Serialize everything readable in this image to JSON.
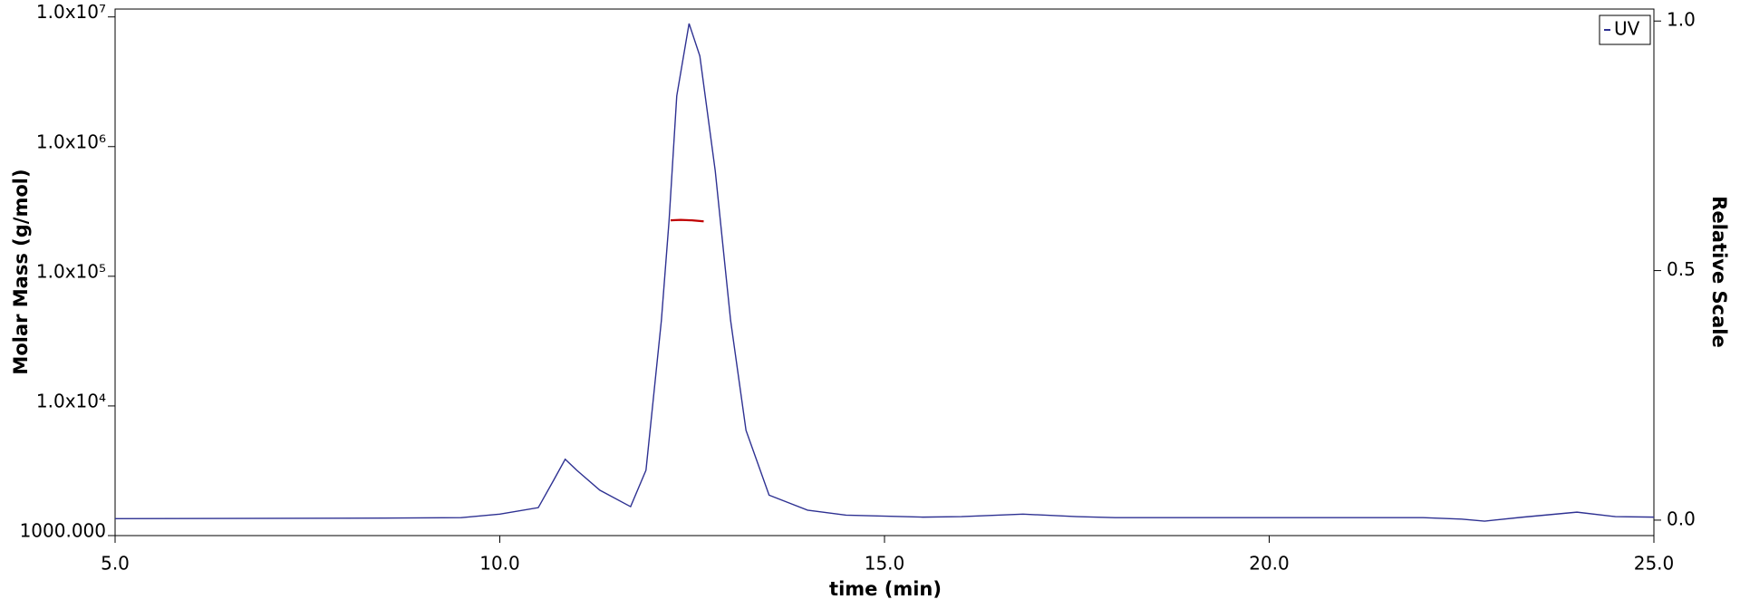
{
  "chart_data": {
    "type": "line",
    "x_label": "time (min)",
    "y_label": "Molar Mass (g/mol)",
    "y2_label": "Relative Scale",
    "xlim": [
      5,
      25
    ],
    "xticks": [
      {
        "value": 5,
        "label": "5.0"
      },
      {
        "value": 10,
        "label": "10.0"
      },
      {
        "value": 15,
        "label": "15.0"
      },
      {
        "value": 20,
        "label": "20.0"
      },
      {
        "value": 25,
        "label": "25.0"
      }
    ],
    "ylog": true,
    "ylim": [
      1000,
      11500000
    ],
    "yticks": [
      {
        "value": 1000,
        "label": "1000.000"
      },
      {
        "value": 10000,
        "label": "1.0x10⁴"
      },
      {
        "value": 100000,
        "label": "1.0x10⁵"
      },
      {
        "value": 1000000,
        "label": "1.0x10⁶"
      },
      {
        "value": 10000000,
        "label": "1.0x10⁷"
      }
    ],
    "y2lim": [
      -0.031,
      1.024
    ],
    "y2ticks": [
      {
        "value": 0,
        "label": "0.0"
      },
      {
        "value": 0.5,
        "label": "0.5"
      },
      {
        "value": 1,
        "label": "1.0"
      }
    ],
    "legend": "top-right",
    "series": [
      {
        "name": "UV",
        "color": "#2e3192",
        "axis": "y2",
        "x": [
          5.0,
          8.5,
          9.5,
          10.0,
          10.5,
          10.7,
          10.85,
          11.0,
          11.3,
          11.7,
          11.9,
          12.1,
          12.2,
          12.3,
          12.46,
          12.6,
          12.8,
          13.0,
          13.2,
          13.5,
          14.0,
          14.5,
          15.5,
          16.0,
          16.8,
          17.5,
          18.0,
          22.0,
          22.5,
          22.8,
          23.3,
          24.0,
          24.5,
          25.0
        ],
        "values": [
          0.003,
          0.004,
          0.005,
          0.012,
          0.025,
          0.08,
          0.122,
          0.1,
          0.06,
          0.027,
          0.1,
          0.4,
          0.6,
          0.85,
          0.995,
          0.93,
          0.7,
          0.4,
          0.18,
          0.05,
          0.02,
          0.01,
          0.006,
          0.007,
          0.012,
          0.007,
          0.005,
          0.005,
          0.002,
          -0.002,
          0.006,
          0.016,
          0.007,
          0.006
        ]
      },
      {
        "color": "#c00000",
        "axis": "y",
        "x": [
          12.22,
          12.35,
          12.5,
          12.65
        ],
        "values": [
          270000,
          272000,
          270000,
          265000
        ]
      }
    ]
  }
}
